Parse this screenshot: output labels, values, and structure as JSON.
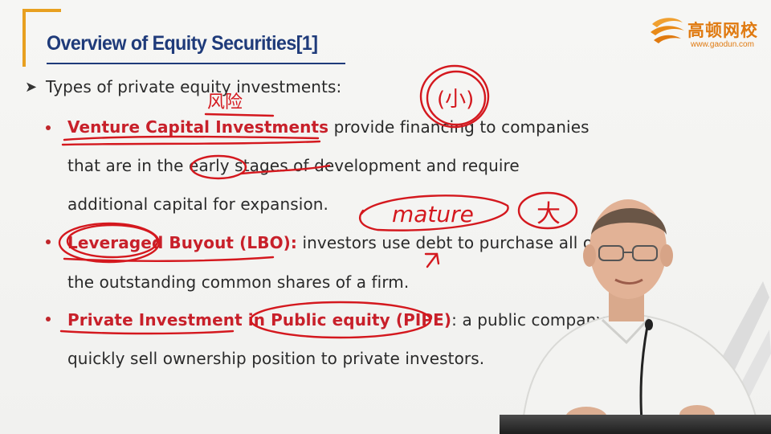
{
  "title": "Overview of Equity Securities[1]",
  "logo": {
    "name": "高顿网校",
    "url": "www.gaodun.com"
  },
  "intro": "Types of private equity investments:",
  "items": [
    {
      "term": "Venture Capital Investments",
      "line1_rest": " provide financing to companies",
      "line2": "that are in the early stages of development and require",
      "line3": "additional capital for expansion."
    },
    {
      "term": "Leveraged Buyout (LBO):",
      "line1_rest": " investors use debt to purchase all of",
      "line2": "the outstanding common shares of a firm."
    },
    {
      "term": "Private Investment in Public equity (PIPE)",
      "line1_rest": ": a public company",
      "line2": "quickly sell ownership position to private investors."
    }
  ],
  "annotations": {
    "risk_note": "风险",
    "small_note": "(小)",
    "mature_note": "mature",
    "big_note": "大"
  },
  "colors": {
    "title": "#1f3b7a",
    "accent": "#e8a020",
    "term": "#c8202a",
    "ink": "#d4181e"
  }
}
